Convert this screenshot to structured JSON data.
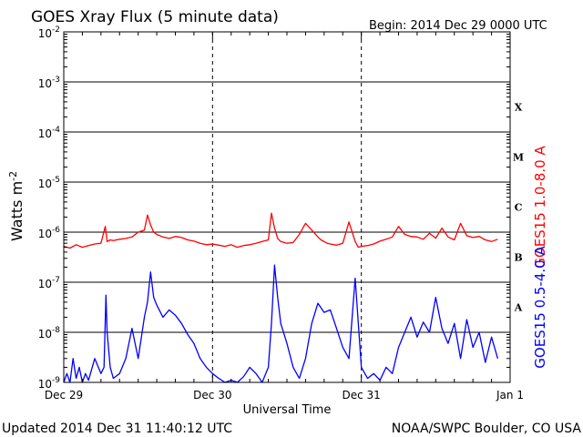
{
  "chart_data": {
    "type": "line",
    "title": "GOES Xray Flux (5 minute data)",
    "begin_label": "Begin:  2014 Dec 29 0000 UTC",
    "ylabel_main": "Watts m",
    "ylabel_sup": "-2",
    "xlabel": "Universal Time",
    "yscale": "log",
    "ylim": [
      1e-09,
      0.01
    ],
    "xlim": [
      0,
      72
    ],
    "x_unit": "hours since 2014 Dec 29 0000 UTC",
    "x_ticks": [
      {
        "x": 0,
        "label": "Dec 29"
      },
      {
        "x": 24,
        "label": "Dec 30"
      },
      {
        "x": 48,
        "label": "Dec 31"
      },
      {
        "x": 72,
        "label": "Jan 1"
      }
    ],
    "y_ticks": [
      {
        "exp": -9,
        "base": "10",
        "sup": "-9"
      },
      {
        "exp": -8,
        "base": "10",
        "sup": "-8"
      },
      {
        "exp": -7,
        "base": "10",
        "sup": "-7"
      },
      {
        "exp": -6,
        "base": "10",
        "sup": "-6"
      },
      {
        "exp": -5,
        "base": "10",
        "sup": "-5"
      },
      {
        "exp": -4,
        "base": "10",
        "sup": "-4"
      },
      {
        "exp": -3,
        "base": "10",
        "sup": "-3"
      },
      {
        "exp": -2,
        "base": "10",
        "sup": "-2"
      }
    ],
    "flare_classes": [
      {
        "label": "A",
        "exp": -7.5
      },
      {
        "label": "B",
        "exp": -6.5
      },
      {
        "label": "C",
        "exp": -5.5
      },
      {
        "label": "M",
        "exp": -4.5
      },
      {
        "label": "X",
        "exp": -3.5
      }
    ],
    "grid": "horizontal solid at decades; vertical dashed at day boundaries",
    "series": [
      {
        "name": "GOES15 1.0-8.0 A",
        "color": "#ff0000",
        "x": [
          0,
          1,
          2,
          3,
          4,
          5,
          6,
          6.7,
          7,
          7.5,
          8,
          9,
          10,
          11,
          12,
          13,
          13.5,
          14,
          14.5,
          15,
          16,
          17,
          18,
          19,
          20,
          21,
          22,
          23,
          24,
          25,
          26,
          27,
          28,
          29,
          30,
          31,
          32,
          33,
          33.5,
          34,
          34.5,
          35,
          36,
          37,
          38,
          39,
          40,
          41,
          41.5,
          42,
          42.5,
          43,
          44,
          45,
          46,
          47,
          47.5,
          48,
          49,
          50,
          51,
          52,
          53,
          54,
          55,
          56,
          57,
          58,
          59,
          60,
          61,
          62,
          63,
          64,
          65,
          66,
          67,
          68,
          69,
          70
        ],
        "y": [
          5.2e-07,
          4.8e-07,
          5.6e-07,
          5e-07,
          5.4e-07,
          5.8e-07,
          6e-07,
          1.3e-06,
          6.5e-07,
          7e-07,
          6.8e-07,
          7.2e-07,
          7.5e-07,
          8e-07,
          1e-06,
          1.1e-06,
          2.2e-06,
          1.4e-06,
          1e-06,
          9e-07,
          8e-07,
          7.5e-07,
          8.2e-07,
          7.8e-07,
          7e-07,
          6.6e-07,
          6e-07,
          5.6e-07,
          5.8e-07,
          5.5e-07,
          5.2e-07,
          5.6e-07,
          5e-07,
          5.4e-07,
          5.6e-07,
          6e-07,
          6.5e-07,
          7e-07,
          2.4e-06,
          1.2e-06,
          7.5e-07,
          6.5e-07,
          6e-07,
          6.2e-07,
          9e-07,
          1.5e-06,
          1.1e-06,
          8e-07,
          7e-07,
          6.5e-07,
          6e-07,
          5.8e-07,
          5.5e-07,
          6e-07,
          1.6e-06,
          6.5e-07,
          5e-07,
          5.2e-07,
          5.4e-07,
          5.8e-07,
          6.6e-07,
          7.2e-07,
          8e-07,
          1.3e-06,
          9e-07,
          8.2e-07,
          8e-07,
          7.2e-07,
          9.5e-07,
          7.6e-07,
          1.2e-06,
          8e-07,
          7e-07,
          1.5e-06,
          8.5e-07,
          7.8e-07,
          8.2e-07,
          7e-07,
          6.5e-07,
          7.2e-07
        ]
      },
      {
        "name": "GOES15 0.5-4.0 A",
        "color": "#0000ff",
        "x": [
          0,
          0.5,
          1,
          1.5,
          2,
          2.5,
          3,
          3.5,
          4,
          5,
          6,
          6.5,
          6.8,
          7,
          7.5,
          8,
          9,
          10,
          11,
          12,
          13,
          13.5,
          14,
          14.5,
          15,
          16,
          17,
          18,
          19,
          20,
          21,
          22,
          23,
          24,
          25,
          26,
          27,
          28,
          29,
          30,
          31,
          32,
          33,
          33.5,
          34,
          34.5,
          35,
          36,
          37,
          38,
          39,
          40,
          41,
          42,
          43,
          44,
          45,
          46,
          47,
          48,
          49,
          50,
          51,
          52,
          53,
          54,
          55,
          56,
          57,
          58,
          59,
          60,
          61,
          62,
          63,
          64,
          65,
          66,
          67,
          68,
          69,
          70
        ],
        "y": [
          1e-09,
          1.5e-09,
          1e-09,
          3e-09,
          1.2e-09,
          2e-09,
          1e-09,
          1.5e-09,
          1.1e-09,
          3e-09,
          1.5e-09,
          2e-09,
          5.5e-08,
          1e-08,
          2e-09,
          1.2e-09,
          1.5e-09,
          3e-09,
          1.2e-08,
          3e-09,
          2e-08,
          4e-08,
          1.6e-07,
          5e-08,
          3.5e-08,
          2e-08,
          2.8e-08,
          2.2e-08,
          1.5e-08,
          9e-09,
          6e-09,
          3e-09,
          2e-09,
          1.5e-09,
          1.2e-09,
          1e-09,
          1.1e-09,
          1e-09,
          1.3e-09,
          2e-09,
          1.5e-09,
          1e-09,
          2e-09,
          1.5e-08,
          2.2e-07,
          5e-08,
          1.5e-08,
          6e-09,
          2e-09,
          1.2e-09,
          3e-09,
          1.5e-08,
          3.8e-08,
          2.5e-08,
          2.8e-08,
          1.2e-08,
          5e-09,
          3e-09,
          1.2e-07,
          2e-09,
          1.2e-09,
          1.5e-09,
          1.1e-09,
          2e-09,
          1.5e-09,
          5e-09,
          1e-08,
          2e-08,
          8e-09,
          1.6e-08,
          1e-08,
          5e-08,
          1.2e-08,
          6e-09,
          1.5e-08,
          3e-09,
          1.8e-08,
          5e-09,
          1e-08,
          2.5e-09,
          8e-09,
          3e-09
        ]
      }
    ]
  },
  "footer": {
    "updated": "Updated 2014 Dec 31 11:40:12 UTC",
    "credit": "NOAA/SWPC Boulder, CO USA"
  }
}
